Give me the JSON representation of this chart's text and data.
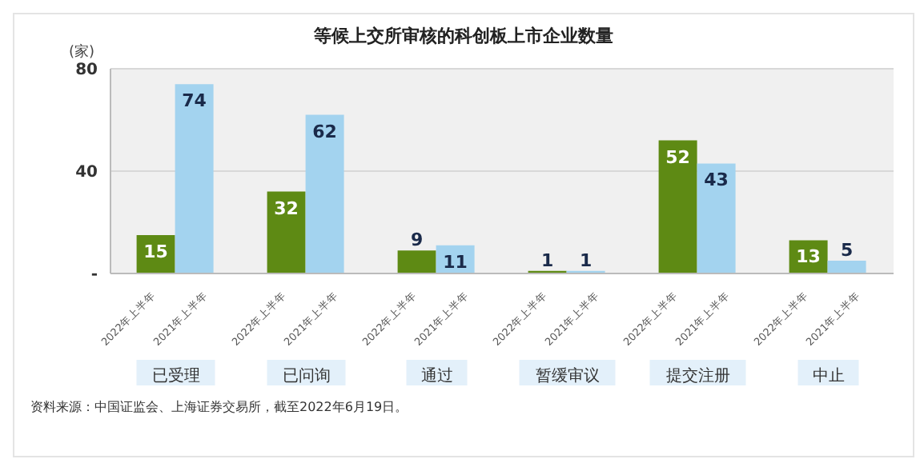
{
  "chart_data": {
    "type": "bar",
    "title": "等候上交所审核的科创板上市企业数量",
    "ylabel": "(家)",
    "categories": [
      "已受理",
      "已问询",
      "通过",
      "暂缓审议",
      "提交注册",
      "中止"
    ],
    "series": [
      {
        "name": "2022年上半年",
        "color": "#5e8a14",
        "values": [
          15,
          32,
          9,
          1,
          52,
          13
        ]
      },
      {
        "name": "2021年上半年",
        "color": "#a3d3ef",
        "values": [
          74,
          62,
          11,
          1,
          43,
          5
        ]
      }
    ],
    "ylim": [
      0,
      80
    ],
    "yticks": [
      {
        "value": 0,
        "label": "-"
      },
      40,
      80
    ],
    "grid": "y",
    "legend": false,
    "data_labels": true,
    "annotations": [
      "资料来源：中国证监会、上海证券交易所，截至2022年6月19日。"
    ]
  }
}
